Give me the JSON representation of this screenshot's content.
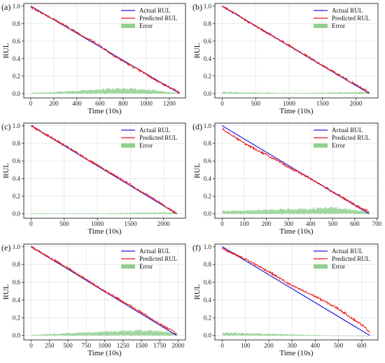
{
  "legend_labels": {
    "actual": "Actual RUL",
    "predicted": "Predicted RUL",
    "error": "Error"
  },
  "colors": {
    "actual": "#1f1fe0",
    "predicted": "#ee1111",
    "error": "#8fd08f"
  },
  "chart_data": [
    {
      "panel": "(a)",
      "type": "line",
      "xlabel": "Time (10s)",
      "ylabel": "RUL",
      "xlim": [
        -60,
        1340
      ],
      "ylim": [
        -0.05,
        1.03
      ],
      "xticks": [
        0,
        200,
        400,
        600,
        800,
        1000,
        1200
      ],
      "yticks": [
        0.0,
        0.2,
        0.4,
        0.6,
        0.8,
        1.0
      ],
      "tick_labels_x": [
        "0",
        "200",
        "400",
        "600",
        "800",
        "1000",
        "1200"
      ],
      "tick_labels_y": [
        "0.0",
        "0.2",
        "0.4",
        "0.6",
        "0.8",
        "1.0"
      ],
      "x_end": 1290,
      "grid": true,
      "legend": "top-right",
      "series": [
        {
          "name": "Actual RUL",
          "x": [
            0,
            1290
          ],
          "y": [
            1.0,
            0.0
          ]
        },
        {
          "name": "Predicted RUL",
          "x": [
            0,
            200,
            400,
            600,
            700,
            800,
            1000,
            1100,
            1290
          ],
          "y": [
            0.99,
            0.85,
            0.7,
            0.55,
            0.45,
            0.37,
            0.22,
            0.14,
            0.01
          ]
        },
        {
          "name": "Error",
          "x": [
            0,
            400,
            600,
            800,
            1000,
            1290
          ],
          "y": [
            0.0,
            0.02,
            0.03,
            0.04,
            0.03,
            0.0
          ]
        }
      ]
    },
    {
      "panel": "(b)",
      "type": "line",
      "xlabel": "Time (10s)",
      "ylabel": "RUL",
      "xlim": [
        -110,
        2330
      ],
      "ylim": [
        -0.05,
        1.03
      ],
      "xticks": [
        0,
        500,
        1000,
        1500,
        2000
      ],
      "yticks": [
        0.0,
        0.2,
        0.4,
        0.6,
        0.8,
        1.0
      ],
      "tick_labels_x": [
        "0",
        "500",
        "1000",
        "1500",
        "2000"
      ],
      "tick_labels_y": [
        "0.0",
        "0.2",
        "0.4",
        "0.6",
        "0.8",
        "1.0"
      ],
      "x_end": 2200,
      "grid": true,
      "legend": "top-right",
      "series": [
        {
          "name": "Actual RUL",
          "x": [
            0,
            2200
          ],
          "y": [
            1.0,
            0.0
          ]
        },
        {
          "name": "Predicted RUL",
          "x": [
            0,
            500,
            1000,
            1500,
            2000,
            2200
          ],
          "y": [
            1.0,
            0.77,
            0.55,
            0.32,
            0.1,
            0.01
          ]
        },
        {
          "name": "Error",
          "x": [
            0,
            1000,
            2200
          ],
          "y": [
            0.01,
            0.0,
            0.01
          ]
        }
      ]
    },
    {
      "panel": "(c)",
      "type": "line",
      "xlabel": "Time (10s)",
      "ylabel": "RUL",
      "xlim": [
        -110,
        2330
      ],
      "ylim": [
        -0.05,
        1.03
      ],
      "xticks": [
        0,
        500,
        1000,
        1500,
        2000
      ],
      "yticks": [
        0.0,
        0.2,
        0.4,
        0.6,
        0.8,
        1.0
      ],
      "tick_labels_x": [
        "0",
        "500",
        "1000",
        "1500",
        "2000"
      ],
      "tick_labels_y": [
        "0.0",
        "0.2",
        "0.4",
        "0.6",
        "0.8",
        "1.0"
      ],
      "x_end": 2200,
      "grid": true,
      "legend": "top-right",
      "series": [
        {
          "name": "Actual RUL",
          "x": [
            0,
            2200
          ],
          "y": [
            1.0,
            0.0
          ]
        },
        {
          "name": "Predicted RUL",
          "x": [
            0,
            500,
            1000,
            1500,
            2000,
            2200
          ],
          "y": [
            1.0,
            0.78,
            0.55,
            0.33,
            0.1,
            0.0
          ]
        },
        {
          "name": "Error",
          "x": [
            0,
            1000,
            2200
          ],
          "y": [
            0.0,
            0.0,
            0.01
          ]
        }
      ]
    },
    {
      "panel": "(d)",
      "type": "line",
      "xlabel": "Time (10s)",
      "ylabel": "RUL",
      "xlim": [
        -33,
        705
      ],
      "ylim": [
        -0.05,
        1.03
      ],
      "xticks": [
        0,
        100,
        200,
        300,
        400,
        500,
        600,
        700
      ],
      "yticks": [
        0.0,
        0.2,
        0.4,
        0.6,
        0.8,
        1.0
      ],
      "tick_labels_x": [
        "0",
        "100",
        "200",
        "300",
        "400",
        "500",
        "600",
        "700"
      ],
      "tick_labels_y": [
        "0.0",
        "0.2",
        "0.4",
        "0.6",
        "0.8",
        "1.0"
      ],
      "x_end": 665,
      "grid": true,
      "legend": "top-right",
      "series": [
        {
          "name": "Actual RUL",
          "x": [
            0,
            665
          ],
          "y": [
            1.0,
            0.0
          ]
        },
        {
          "name": "Predicted RUL",
          "x": [
            0,
            100,
            200,
            300,
            400,
            500,
            600,
            665
          ],
          "y": [
            0.97,
            0.8,
            0.67,
            0.53,
            0.4,
            0.25,
            0.1,
            0.02
          ]
        },
        {
          "name": "Error",
          "x": [
            0,
            200,
            400,
            500,
            600,
            665
          ],
          "y": [
            0.02,
            0.03,
            0.04,
            0.05,
            0.03,
            0.01
          ]
        }
      ]
    },
    {
      "panel": "(e)",
      "type": "line",
      "xlabel": "Time (10s)",
      "ylabel": "RUL",
      "xlim": [
        -100,
        2100
      ],
      "ylim": [
        -0.05,
        1.03
      ],
      "xticks": [
        0,
        250,
        500,
        750,
        1000,
        1250,
        1500,
        1750,
        2000
      ],
      "yticks": [
        0.0,
        0.2,
        0.4,
        0.6,
        0.8,
        1.0
      ],
      "tick_labels_x": [
        "0",
        "250",
        "500",
        "750",
        "1000",
        "1250",
        "1500",
        "1750",
        "2000"
      ],
      "tick_labels_y": [
        "0.0",
        "0.2",
        "0.4",
        "0.6",
        "0.8",
        "1.0"
      ],
      "x_end": 1980,
      "grid": true,
      "legend": "top-right",
      "series": [
        {
          "name": "Actual RUL",
          "x": [
            0,
            1980
          ],
          "y": [
            1.0,
            0.0
          ]
        },
        {
          "name": "Predicted RUL",
          "x": [
            0,
            500,
            1000,
            1500,
            1750,
            1980
          ],
          "y": [
            1.0,
            0.76,
            0.5,
            0.26,
            0.13,
            0.02
          ]
        },
        {
          "name": "Error",
          "x": [
            0,
            1000,
            1500,
            1980
          ],
          "y": [
            0.0,
            0.03,
            0.04,
            0.02
          ]
        }
      ]
    },
    {
      "panel": "(f)",
      "type": "line",
      "xlabel": "Time (10s)",
      "ylabel": "RUL",
      "xlim": [
        -32,
        670
      ],
      "ylim": [
        -0.05,
        1.03
      ],
      "xticks": [
        0,
        100,
        200,
        300,
        400,
        500,
        600
      ],
      "yticks": [
        0.0,
        0.2,
        0.4,
        0.6,
        0.8,
        1.0
      ],
      "tick_labels_x": [
        "0",
        "100",
        "200",
        "300",
        "400",
        "500",
        "600"
      ],
      "tick_labels_y": [
        "0.0",
        "0.2",
        "0.4",
        "0.6",
        "0.8",
        "1.0"
      ],
      "x_end": 635,
      "grid": true,
      "legend": "top-right",
      "series": [
        {
          "name": "Actual RUL",
          "x": [
            0,
            635
          ],
          "y": [
            1.0,
            0.0
          ]
        },
        {
          "name": "Predicted RUL",
          "x": [
            0,
            100,
            200,
            300,
            400,
            500,
            600,
            635
          ],
          "y": [
            0.98,
            0.86,
            0.72,
            0.56,
            0.44,
            0.3,
            0.12,
            0.04
          ]
        },
        {
          "name": "Error",
          "x": [
            0,
            200,
            400,
            500,
            635
          ],
          "y": [
            0.02,
            0.01,
            0.0,
            -0.01,
            -0.02
          ]
        }
      ]
    }
  ]
}
